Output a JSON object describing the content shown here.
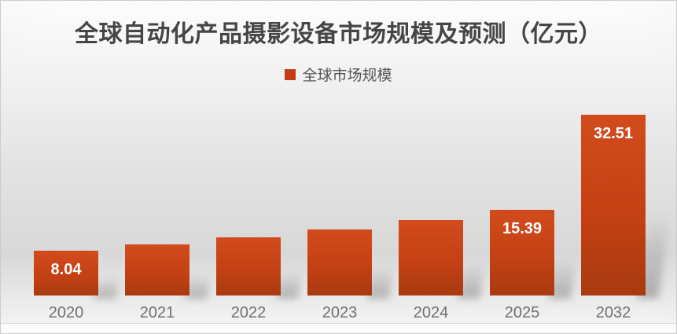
{
  "chart_data": {
    "type": "bar",
    "title": "全球自动化产品摄影设备市场规模及预测（亿元）",
    "legend_position": "top-center",
    "categories": [
      "2020",
      "2021",
      "2022",
      "2023",
      "2024",
      "2025",
      "2032"
    ],
    "series": [
      {
        "name": "全球市场规模",
        "values": [
          8.04,
          9.16,
          10.43,
          11.88,
          13.53,
          15.39,
          32.51
        ],
        "values_estimated": [
          false,
          true,
          true,
          true,
          true,
          false,
          false
        ]
      }
    ],
    "data_labels": [
      "8.04",
      "",
      "",
      "",
      "",
      "15.39",
      "32.51"
    ],
    "xlabel": "",
    "ylabel": "",
    "ylim": [
      0,
      32.51
    ],
    "y_axis_visible": false,
    "grid": false,
    "colors": {
      "bar_gradient_top": "#d24b1d",
      "bar_gradient_bottom": "#a93a10",
      "legend_marker": "#c23d15",
      "title_text": "#454545",
      "legend_text": "#555555",
      "axis_label_text": "#6f6f6f",
      "data_label_text": "#ffffff"
    }
  }
}
